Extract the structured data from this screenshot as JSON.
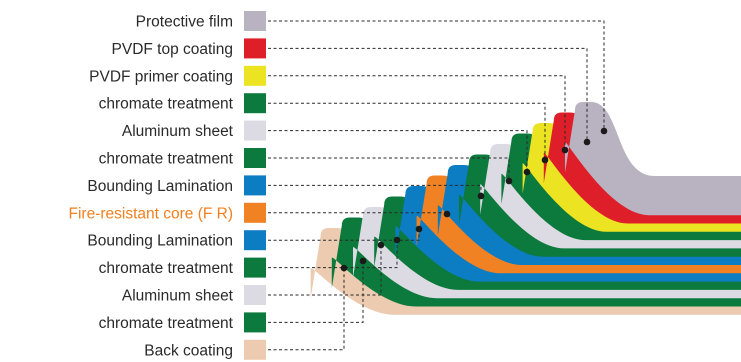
{
  "layers": [
    {
      "key": "protective-film",
      "label": "Protective film",
      "color": "#b9b3c1",
      "highlight": false
    },
    {
      "key": "pvdf-top-coating",
      "label": "PVDF top coating",
      "color": "#de1f29",
      "highlight": false
    },
    {
      "key": "pvdf-primer-coating",
      "label": "PVDF  primer coating",
      "color": "#ece423",
      "highlight": false
    },
    {
      "key": "chromate-treatment-1",
      "label": "chromate treatment",
      "color": "#0b7a3c",
      "highlight": false
    },
    {
      "key": "aluminum-sheet-1",
      "label": "Aluminum sheet",
      "color": "#dcdae3",
      "highlight": false
    },
    {
      "key": "chromate-treatment-2",
      "label": "chromate treatment",
      "color": "#0b7a3c",
      "highlight": false
    },
    {
      "key": "bounding-lamination-1",
      "label": "Bounding Lamination",
      "color": "#0c7cc3",
      "highlight": false
    },
    {
      "key": "fire-resistant-core",
      "label": "Fire-resistant core (F R)",
      "color": "#f08223",
      "highlight": true
    },
    {
      "key": "bounding-lamination-2",
      "label": "Bounding Lamination",
      "color": "#0c7cc3",
      "highlight": false
    },
    {
      "key": "chromate-treatment-3",
      "label": "chromate treatment",
      "color": "#0b7a3c",
      "highlight": false
    },
    {
      "key": "aluminum-sheet-2",
      "label": "Aluminum sheet",
      "color": "#dcdae3",
      "highlight": false
    },
    {
      "key": "chromate-treatment-4",
      "label": "chromate treatment",
      "color": "#0b7a3c",
      "highlight": false
    },
    {
      "key": "back-coating",
      "label": "Back coating",
      "color": "#eccbb0",
      "highlight": false
    }
  ],
  "highlight_color": "#f07f1f"
}
